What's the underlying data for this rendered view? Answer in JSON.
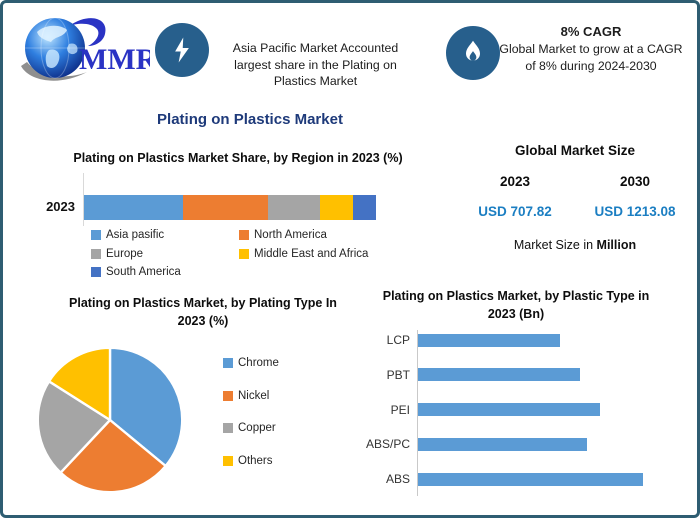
{
  "frame": {
    "border_color": "#2e5d72"
  },
  "logo": {
    "text": "MMR",
    "brand_color": "#2a33c4"
  },
  "header": {
    "fact1": "Asia Pacific Market Accounted largest share in the Plating on Plastics Market",
    "cagr_title": "8% CAGR",
    "cagr_text": "Global Market to grow at a CAGR of 8% during 2024-2030",
    "icon_circle_color": "#275f8c"
  },
  "title": "Plating on Plastics Market",
  "market_size": {
    "heading": "Global Market Size",
    "year1": "2023",
    "year2": "2030",
    "value1": "USD 707.82",
    "value2": "USD 1213.08",
    "note_prefix": "Market Size in ",
    "note_bold": "Million",
    "value_color": "#1b7ec2"
  },
  "chart_data": [
    {
      "type": "bar",
      "variant": "stacked-horizontal",
      "title": "Plating on Plastics Market Share, by Region in 2023 (%)",
      "categories": [
        "2023"
      ],
      "series": [
        {
          "name": "Asia pasific",
          "values": [
            34
          ],
          "color": "#5B9BD5"
        },
        {
          "name": "North America",
          "values": [
            29
          ],
          "color": "#ED7D31"
        },
        {
          "name": "Europe",
          "values": [
            18
          ],
          "color": "#A5A5A5"
        },
        {
          "name": "Middle East and Africa",
          "values": [
            11
          ],
          "color": "#FFC000"
        },
        {
          "name": "South America",
          "values": [
            8
          ],
          "color": "#4472C4"
        }
      ],
      "unit": "%",
      "legend_position": "bottom",
      "note": "segment shares estimated from bar proportions; no data labels shown"
    },
    {
      "type": "pie",
      "title": "Plating on Plastics Market, by Plating Type In 2023 (%)",
      "labels": [
        "Chrome",
        "Nickel",
        "Copper",
        "Others"
      ],
      "values": [
        36,
        26,
        22,
        16
      ],
      "colors": [
        "#5B9BD5",
        "#ED7D31",
        "#A5A5A5",
        "#FFC000"
      ],
      "unit": "%",
      "legend_position": "right",
      "note": "slice shares estimated from angles; no data labels shown"
    },
    {
      "type": "bar",
      "variant": "horizontal",
      "title": "Plating on Plastics Market, by Plastic Type in 2023 (Bn)",
      "categories": [
        "LCP",
        "PBT",
        "PEI",
        "ABS/PC",
        "ABS"
      ],
      "values": [
        63,
        72,
        81,
        75,
        100
      ],
      "color": "#5B9BD5",
      "unit": "relative (% of longest bar)",
      "note": "bar lengths estimated; no numeric axis or data labels shown"
    }
  ]
}
